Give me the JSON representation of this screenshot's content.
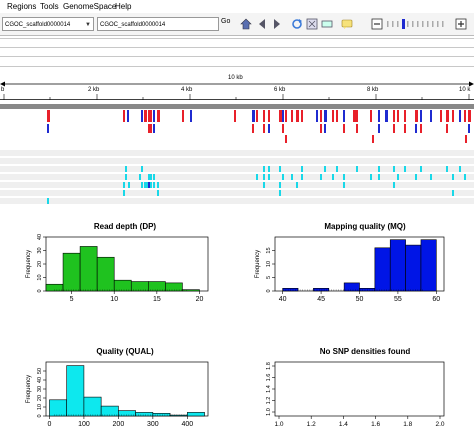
{
  "menu": [
    "Regions",
    "Tools",
    "GenomeSpace",
    "Help"
  ],
  "toolbar": {
    "genome_value": "CGOC_scaffold0000014",
    "locus_value": "CGOC_scaffold0000014",
    "go_label": "Go"
  },
  "ruler": {
    "span_label": "10 kb",
    "ticks": [
      "b",
      "2 kb",
      "4 kb",
      "6 kb",
      "8 kb",
      "10 k"
    ]
  },
  "colors": {
    "variant_red": "#e8202a",
    "variant_blue": "#1f2bd0",
    "genotype_cyan": "#19d8e8",
    "dp_green": "#1fc21f",
    "mq_blue": "#0015e6",
    "qual_cyan": "#0de8ee"
  },
  "plots": {
    "dp": {
      "title": "Read depth (DP)",
      "ylabel": "Frequency",
      "x_ticks": [
        "5",
        "10",
        "15",
        "20"
      ],
      "y_ticks": [
        "0",
        "10",
        "20",
        "30",
        "40"
      ],
      "chart_data": {
        "type": "bar",
        "title": "Read depth (DP)",
        "ylabel": "Frequency",
        "bin_edges": [
          2,
          4,
          6,
          8,
          10,
          12,
          14,
          16,
          18,
          20
        ],
        "values": [
          5,
          28,
          33,
          25,
          8,
          7,
          7,
          6,
          1
        ],
        "xlim": [
          2,
          21
        ],
        "ylim": [
          0,
          40
        ]
      }
    },
    "mq": {
      "title": "Mapping quality (MQ)",
      "ylabel": "Frequency",
      "x_ticks": [
        "40",
        "45",
        "50",
        "55",
        "60"
      ],
      "y_ticks": [
        "0",
        "5",
        "10",
        "15"
      ],
      "chart_data": {
        "type": "bar",
        "title": "Mapping quality (MQ)",
        "ylabel": "Frequency",
        "bin_edges": [
          40,
          42,
          44,
          46,
          48,
          50,
          52,
          54,
          56,
          58,
          60
        ],
        "values": [
          1,
          0,
          1,
          0,
          3,
          1,
          16,
          19,
          17,
          19
        ],
        "xlim": [
          39,
          61
        ],
        "ylim": [
          0,
          20
        ]
      }
    },
    "qual": {
      "title": "Quality (QUAL)",
      "ylabel": "Frequency",
      "x_ticks": [
        "0",
        "100",
        "200",
        "300",
        "400"
      ],
      "y_ticks": [
        "0",
        "10",
        "20",
        "30",
        "40",
        "50"
      ],
      "chart_data": {
        "type": "bar",
        "title": "Quality (QUAL)",
        "ylabel": "Frequency",
        "bin_edges": [
          0,
          50,
          100,
          150,
          200,
          250,
          300,
          350,
          400,
          450
        ],
        "values": [
          18,
          56,
          21,
          11,
          6,
          4,
          3,
          1,
          4
        ],
        "xlim": [
          -10,
          460
        ],
        "ylim": [
          0,
          60
        ]
      }
    },
    "snp": {
      "title": "No SNP densities found",
      "x_ticks": [
        "1.0",
        "1.2",
        "1.4",
        "1.6",
        "1.8",
        "2.0"
      ],
      "y_ticks": [
        "1.0",
        "1.2",
        "1.4",
        "1.6",
        "1.8"
      ],
      "chart_data": {
        "type": "scatter",
        "title": "No SNP densities found",
        "x": [],
        "y": [],
        "xlim": [
          1.0,
          2.0
        ],
        "ylim": [
          1.0,
          1.8
        ]
      }
    }
  }
}
